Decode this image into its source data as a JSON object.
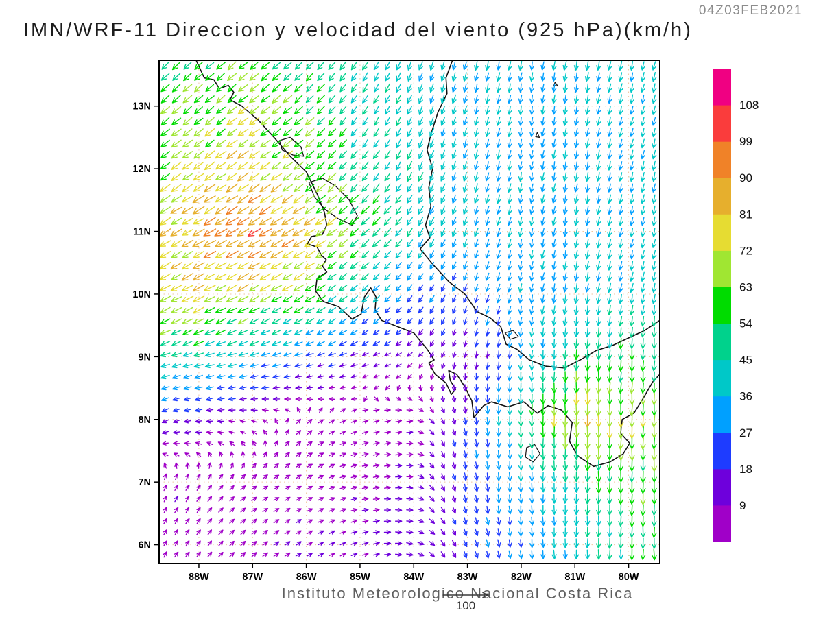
{
  "chart_data": {
    "type": "vector_field",
    "title": "IMN/WRF-11 Direccion y velocidad del viento (925 hPa)(km/h)",
    "timestamp": "04Z03FEB2021",
    "footer": "Instituto Meteorologico Nacional Costa Rica",
    "units": "km/h",
    "level": "925 hPa",
    "reference_vector": {
      "label": "100"
    },
    "x_axis": {
      "tick_labels": [
        "88W",
        "87W",
        "86W",
        "85W",
        "84W",
        "83W",
        "82W",
        "81W",
        "80W"
      ],
      "tick_lons": [
        -88,
        -87,
        -86,
        -85,
        -84,
        -83,
        -82,
        -81,
        -80
      ],
      "range": [
        -88.74,
        -79.42
      ]
    },
    "y_axis": {
      "tick_labels": [
        "6N",
        "7N",
        "8N",
        "9N",
        "10N",
        "11N",
        "12N",
        "13N"
      ],
      "tick_lats": [
        6,
        7,
        8,
        9,
        10,
        11,
        12,
        13
      ],
      "range": [
        5.7,
        13.73
      ]
    },
    "colorbar": {
      "levels": [
        9,
        18,
        27,
        36,
        45,
        54,
        63,
        72,
        81,
        90,
        99,
        108
      ],
      "colors": [
        "#a000c8",
        "#6e00dc",
        "#1e3cff",
        "#00a0ff",
        "#00c8c8",
        "#00d28c",
        "#00dc00",
        "#a0e632",
        "#e6dc32",
        "#e6af2d",
        "#f08228",
        "#fa3c3c",
        "#f00082"
      ]
    },
    "wind_grid": {
      "lon_start": -89,
      "lon_step": 1,
      "lat_start": 6,
      "lat_step": 1,
      "speeds": [
        [
          8,
          8,
          8,
          9,
          10,
          12,
          22,
          30,
          40,
          52,
          60
        ],
        [
          9,
          8,
          7,
          7,
          8,
          10,
          24,
          32,
          45,
          58,
          62
        ],
        [
          20,
          12,
          7,
          6,
          7,
          8,
          20,
          50,
          80,
          70,
          58
        ],
        [
          50,
          45,
          35,
          25,
          16,
          10,
          12,
          30,
          50,
          55,
          50
        ],
        [
          72,
          76,
          72,
          62,
          40,
          26,
          26,
          34,
          38,
          40,
          41
        ],
        [
          72,
          85,
          95,
          82,
          58,
          42,
          36,
          34,
          35,
          37,
          39
        ],
        [
          62,
          72,
          80,
          66,
          50,
          42,
          37,
          35,
          35,
          37,
          40
        ],
        [
          56,
          62,
          65,
          55,
          45,
          40,
          37,
          36,
          36,
          38,
          40
        ],
        [
          52,
          56,
          58,
          50,
          44,
          40,
          38,
          37,
          37,
          39,
          41
        ]
      ],
      "dirs": [
        [
          25,
          35,
          50,
          60,
          70,
          100,
          160,
          175,
          180,
          180,
          180
        ],
        [
          20,
          35,
          55,
          65,
          75,
          95,
          170,
          178,
          180,
          180,
          180
        ],
        [
          245,
          260,
          290,
          50,
          70,
          85,
          170,
          180,
          180,
          182,
          183
        ],
        [
          248,
          252,
          255,
          255,
          250,
          230,
          190,
          185,
          183,
          183,
          184
        ],
        [
          242,
          242,
          240,
          237,
          228,
          215,
          200,
          192,
          190,
          191,
          192
        ],
        [
          238,
          240,
          240,
          238,
          228,
          212,
          200,
          193,
          190,
          191,
          193
        ],
        [
          232,
          235,
          236,
          232,
          218,
          205,
          196,
          190,
          190,
          192,
          194
        ],
        [
          227,
          230,
          231,
          226,
          212,
          202,
          195,
          190,
          190,
          193,
          195
        ],
        [
          225,
          227,
          228,
          224,
          212,
          200,
          194,
          190,
          190,
          193,
          195
        ]
      ]
    },
    "map": {
      "coastlines": [
        [
          [
            -88.05,
            13.73
          ],
          [
            -87.9,
            13.45
          ],
          [
            -87.72,
            13.42
          ],
          [
            -87.62,
            13.28
          ],
          [
            -87.45,
            13.33
          ],
          [
            -87.35,
            13.22
          ],
          [
            -87.42,
            13.1
          ],
          [
            -87.2,
            13.0
          ],
          [
            -86.9,
            12.78
          ],
          [
            -86.6,
            12.5
          ],
          [
            -86.3,
            12.2
          ],
          [
            -86.0,
            11.95
          ],
          [
            -85.8,
            11.6
          ],
          [
            -85.66,
            11.3
          ],
          [
            -85.62,
            11.1
          ],
          [
            -85.7,
            10.95
          ],
          [
            -85.9,
            10.92
          ],
          [
            -85.98,
            10.8
          ],
          [
            -85.8,
            10.75
          ],
          [
            -85.72,
            10.62
          ],
          [
            -85.63,
            10.55
          ],
          [
            -85.7,
            10.45
          ],
          [
            -85.62,
            10.35
          ],
          [
            -85.8,
            10.25
          ],
          [
            -85.83,
            10.05
          ],
          [
            -85.68,
            9.88
          ],
          [
            -85.4,
            9.8
          ],
          [
            -85.15,
            9.6
          ],
          [
            -84.98,
            9.68
          ],
          [
            -84.92,
            9.95
          ],
          [
            -84.8,
            10.1
          ],
          [
            -84.7,
            9.95
          ],
          [
            -84.72,
            9.75
          ],
          [
            -84.6,
            9.58
          ],
          [
            -84.3,
            9.48
          ],
          [
            -84.0,
            9.38
          ],
          [
            -83.75,
            9.12
          ],
          [
            -83.62,
            8.95
          ],
          [
            -83.72,
            8.9
          ],
          [
            -83.6,
            8.72
          ],
          [
            -83.4,
            8.58
          ],
          [
            -83.3,
            8.4
          ],
          [
            -83.22,
            8.48
          ],
          [
            -83.32,
            8.62
          ],
          [
            -83.35,
            8.78
          ],
          [
            -83.2,
            8.72
          ],
          [
            -83.05,
            8.52
          ],
          [
            -82.92,
            8.3
          ],
          [
            -82.88,
            8.03
          ],
          [
            -82.7,
            8.22
          ],
          [
            -82.55,
            8.28
          ],
          [
            -82.25,
            8.2
          ],
          [
            -81.95,
            8.28
          ],
          [
            -81.7,
            8.1
          ],
          [
            -81.5,
            8.22
          ],
          [
            -81.25,
            8.15
          ],
          [
            -81.05,
            7.95
          ],
          [
            -81.1,
            7.65
          ],
          [
            -80.95,
            7.42
          ],
          [
            -80.65,
            7.25
          ],
          [
            -80.35,
            7.32
          ],
          [
            -80.1,
            7.45
          ],
          [
            -79.98,
            7.62
          ],
          [
            -80.15,
            7.78
          ],
          [
            -80.12,
            8.0
          ],
          [
            -79.9,
            8.1
          ],
          [
            -79.72,
            8.35
          ],
          [
            -79.55,
            8.6
          ],
          [
            -79.42,
            8.72
          ]
        ],
        [
          [
            -83.28,
            13.73
          ],
          [
            -83.4,
            13.45
          ],
          [
            -83.38,
            13.2
          ],
          [
            -83.55,
            12.9
          ],
          [
            -83.68,
            12.55
          ],
          [
            -83.75,
            12.3
          ],
          [
            -83.65,
            12.0
          ],
          [
            -83.72,
            11.7
          ],
          [
            -83.68,
            11.4
          ],
          [
            -83.78,
            11.1
          ],
          [
            -83.7,
            10.9
          ],
          [
            -83.88,
            10.72
          ],
          [
            -83.65,
            10.48
          ],
          [
            -83.35,
            10.2
          ],
          [
            -83.05,
            10.0
          ],
          [
            -82.82,
            9.72
          ],
          [
            -82.58,
            9.62
          ],
          [
            -82.38,
            9.48
          ],
          [
            -82.28,
            9.2
          ],
          [
            -82.08,
            9.12
          ],
          [
            -81.85,
            8.95
          ],
          [
            -81.55,
            8.85
          ],
          [
            -81.2,
            8.82
          ],
          [
            -80.9,
            8.95
          ],
          [
            -80.6,
            9.1
          ],
          [
            -80.3,
            9.18
          ],
          [
            -80.0,
            9.3
          ],
          [
            -79.7,
            9.42
          ],
          [
            -79.42,
            9.58
          ]
        ]
      ],
      "lakes": [
        [
          [
            -85.95,
            11.78
          ],
          [
            -85.7,
            11.85
          ],
          [
            -85.45,
            11.72
          ],
          [
            -85.2,
            11.5
          ],
          [
            -85.05,
            11.25
          ],
          [
            -85.15,
            11.1
          ],
          [
            -85.4,
            11.2
          ],
          [
            -85.65,
            11.35
          ],
          [
            -85.85,
            11.55
          ]
        ],
        [
          [
            -86.5,
            12.45
          ],
          [
            -86.3,
            12.5
          ],
          [
            -86.1,
            12.35
          ],
          [
            -86.05,
            12.2
          ],
          [
            -86.25,
            12.22
          ],
          [
            -86.45,
            12.3
          ]
        ]
      ],
      "islands": [
        [
          [
            -81.7,
            12.58
          ],
          [
            -81.66,
            12.5
          ],
          [
            -81.73,
            12.51
          ]
        ],
        [
          [
            -81.37,
            13.38
          ],
          [
            -81.32,
            13.32
          ],
          [
            -81.39,
            13.33
          ]
        ],
        [
          [
            -81.9,
            7.55
          ],
          [
            -81.75,
            7.6
          ],
          [
            -81.65,
            7.45
          ],
          [
            -81.78,
            7.32
          ],
          [
            -81.92,
            7.4
          ]
        ],
        [
          [
            -82.3,
            9.38
          ],
          [
            -82.15,
            9.42
          ],
          [
            -82.05,
            9.32
          ],
          [
            -82.2,
            9.28
          ]
        ]
      ]
    }
  }
}
